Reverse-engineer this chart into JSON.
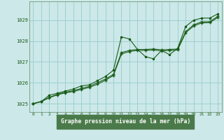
{
  "title": "Graphe pression niveau de la mer (hPa)",
  "bg_color": "#cce8e8",
  "plot_bg_color": "#cce8e8",
  "label_bg_color": "#4a7a4a",
  "line_color": "#1a5c1a",
  "grid_color": "#99cccc",
  "spine_color": "#779977",
  "xlim": [
    -0.5,
    23.5
  ],
  "ylim": [
    1024.6,
    1029.9
  ],
  "yticks": [
    1025,
    1026,
    1027,
    1028,
    1029
  ],
  "xticks": [
    0,
    1,
    2,
    3,
    4,
    5,
    6,
    7,
    8,
    9,
    10,
    11,
    12,
    13,
    14,
    15,
    16,
    17,
    18,
    19,
    20,
    21,
    22,
    23
  ],
  "series1_x": [
    0,
    1,
    2,
    3,
    4,
    5,
    6,
    7,
    8,
    9,
    10,
    11,
    12,
    13,
    14,
    15,
    16,
    17,
    18,
    19,
    20,
    21,
    22,
    23
  ],
  "series1_y": [
    1025.0,
    1025.1,
    1025.4,
    1025.5,
    1025.6,
    1025.7,
    1025.85,
    1025.9,
    1026.1,
    1026.3,
    1026.6,
    1028.2,
    1028.1,
    1027.6,
    1027.25,
    1027.15,
    1027.55,
    1027.35,
    1027.65,
    1028.7,
    1029.0,
    1029.1,
    1029.1,
    1029.3
  ],
  "series2_x": [
    0,
    1,
    2,
    3,
    4,
    5,
    6,
    7,
    8,
    9,
    10,
    11,
    12,
    13,
    14,
    15,
    16,
    17,
    18,
    19,
    20,
    21,
    22,
    23
  ],
  "series2_y": [
    1025.0,
    1025.1,
    1025.3,
    1025.45,
    1025.55,
    1025.62,
    1025.73,
    1025.83,
    1026.0,
    1026.18,
    1026.4,
    1027.45,
    1027.55,
    1027.6,
    1027.6,
    1027.62,
    1027.58,
    1027.6,
    1027.62,
    1028.45,
    1028.78,
    1028.92,
    1028.93,
    1029.18
  ],
  "series3_x": [
    0,
    1,
    2,
    3,
    4,
    5,
    6,
    7,
    8,
    9,
    10,
    11,
    12,
    13,
    14,
    15,
    16,
    17,
    18,
    19,
    20,
    21,
    22,
    23
  ],
  "series3_y": [
    1025.0,
    1025.1,
    1025.28,
    1025.42,
    1025.52,
    1025.58,
    1025.68,
    1025.78,
    1025.93,
    1026.12,
    1026.35,
    1027.38,
    1027.5,
    1027.55,
    1027.55,
    1027.57,
    1027.53,
    1027.55,
    1027.57,
    1028.4,
    1028.72,
    1028.87,
    1028.88,
    1029.13
  ]
}
